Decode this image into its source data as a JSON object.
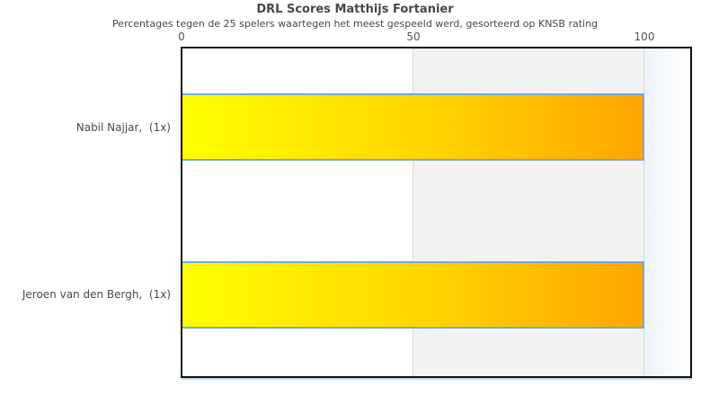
{
  "page": {
    "title": "DRL Scores Matthijs Fortanier",
    "subtitle": "Percentages tegen de 25 spelers waartegen het meest gespeeld werd, gesorteerd op KNSB rating"
  },
  "axis": {
    "ticks": [
      "0",
      "50",
      "100"
    ]
  },
  "bars": [
    {
      "label": "Nabil Najjar,  (1x)",
      "value": 100
    },
    {
      "label": "Jeroen van den Bergh,  (1x)",
      "value": 100
    }
  ],
  "colors": {
    "bar_gradient_start": "#ffff00",
    "bar_gradient_end": "#ffa500",
    "bar_border": "#74aad9",
    "shaded_band": "#f2f2f2",
    "gridline": "#d8d8d8",
    "right_strip": "#ecf3fa",
    "plot_border": "#111111",
    "text": "#4a4a4a"
  },
  "chart_data": {
    "type": "bar",
    "orientation": "horizontal",
    "title": "DRL Scores Matthijs Fortanier",
    "subtitle": "Percentages tegen de 25 spelers waartegen het meest gespeeld werd, gesorteerd op KNSB rating",
    "categories": [
      "Nabil Najjar,  (1x)",
      "Jeroen van den Bergh,  (1x)"
    ],
    "values": [
      100,
      100
    ],
    "xlabel": "",
    "ylabel": "",
    "x_ticks": [
      0,
      50,
      100
    ],
    "xlim": [
      0,
      110
    ],
    "x_axis_position": "top",
    "shaded_x_region": [
      50,
      100
    ],
    "grid": true,
    "legend": "none"
  }
}
